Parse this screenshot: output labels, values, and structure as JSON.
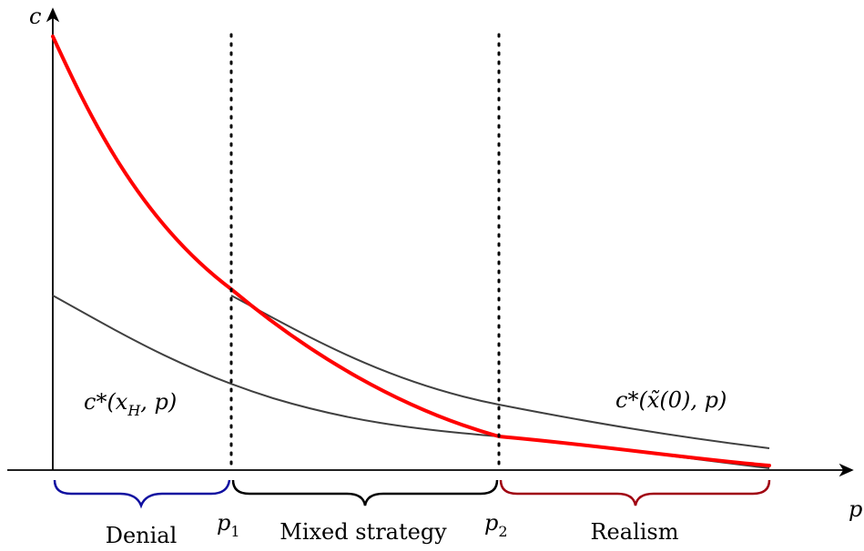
{
  "axes": {
    "x_label": "p",
    "y_label": "c"
  },
  "thresholds": {
    "p1": {
      "base": "p",
      "sub": "1"
    },
    "p2": {
      "base": "p",
      "sub": "2"
    }
  },
  "curves": {
    "xH_label": {
      "pre": "c*(x",
      "sub": "H",
      "post": ", p)"
    },
    "xtilde_label": {
      "pre": "c*(x̃(0), p)"
    }
  },
  "regions": [
    {
      "label": "Denial",
      "color": "#1010a0"
    },
    {
      "label": "Mixed strategy",
      "color": "#000000"
    },
    {
      "label": "Realism",
      "color": "#a00010"
    }
  ],
  "colors": {
    "optimal_curve": "#ff0000",
    "benchmark_curves": "#404040",
    "axes": "#000000"
  }
}
